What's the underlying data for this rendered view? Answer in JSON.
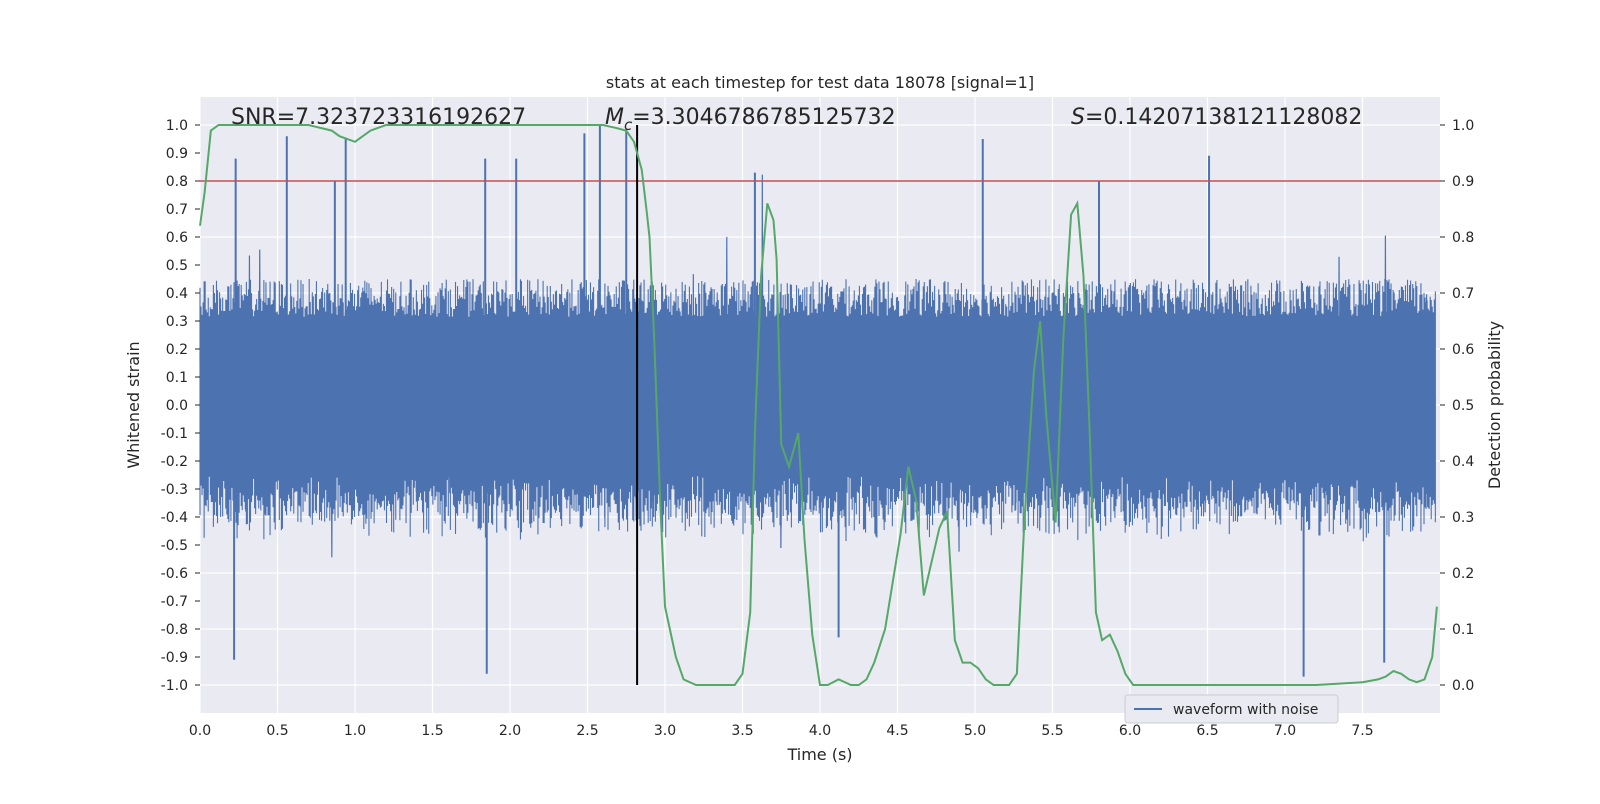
{
  "chart_data": {
    "type": "line",
    "title": "stats at each timestep for test data 18078 [signal=1]",
    "xlabel": "Time (s)",
    "ylabel_left": "Whitened strain",
    "ylabel_right": "Detection probability",
    "xlim": [
      0.0,
      8.0
    ],
    "ylim_left": [
      -1.1,
      1.1
    ],
    "ylim_right": [
      -0.05,
      1.05
    ],
    "x_ticks": [
      "0.0",
      "0.5",
      "1.0",
      "1.5",
      "2.0",
      "2.5",
      "3.0",
      "3.5",
      "4.0",
      "4.5",
      "5.0",
      "5.5",
      "6.0",
      "6.5",
      "7.0",
      "7.5"
    ],
    "y_left_ticks": [
      "-1.0",
      "-0.9",
      "-0.8",
      "-0.7",
      "-0.6",
      "-0.5",
      "-0.4",
      "-0.3",
      "-0.2",
      "-0.1",
      "0.0",
      "0.1",
      "0.2",
      "0.3",
      "0.4",
      "0.5",
      "0.6",
      "0.7",
      "0.8",
      "0.9",
      "1.0"
    ],
    "y_right_ticks": [
      "0.0",
      "0.1",
      "0.2",
      "0.3",
      "0.4",
      "0.5",
      "0.6",
      "0.7",
      "0.8",
      "0.9",
      "1.0"
    ],
    "grid": true,
    "annotations": {
      "snr_text": "SNR=7.323723316192627",
      "mc_symbol": "M",
      "mc_sub": "c",
      "mc_value": "=3.3046786785125732",
      "s_symbol": "S",
      "s_value": "=0.14207138121128082"
    },
    "threshold": {
      "value": 0.8,
      "color": "#c44e52"
    },
    "event_time": 2.82,
    "series": [
      {
        "name": "waveform with noise",
        "color": "#4c72b0",
        "axis": "left",
        "description": "whitened strain noise, approx. 8 s at high sample rate, envelope about ±0.45 with spikes up to ±1.0",
        "spike_values": [
          {
            "t": 0.23,
            "v": 0.88
          },
          {
            "t": 0.56,
            "v": 0.96
          },
          {
            "t": 0.87,
            "v": 0.8
          },
          {
            "t": 0.94,
            "v": 0.95
          },
          {
            "t": 1.84,
            "v": 0.88
          },
          {
            "t": 2.04,
            "v": 0.88
          },
          {
            "t": 2.48,
            "v": 0.97
          },
          {
            "t": 2.58,
            "v": 1.0
          },
          {
            "t": 2.75,
            "v": 0.98
          },
          {
            "t": 3.58,
            "v": 0.83
          },
          {
            "t": 5.05,
            "v": 0.95
          },
          {
            "t": 5.8,
            "v": 0.8
          },
          {
            "t": 6.51,
            "v": 0.89
          },
          {
            "t": 0.22,
            "v": -0.91
          },
          {
            "t": 1.85,
            "v": -0.96
          },
          {
            "t": 4.12,
            "v": -0.83
          },
          {
            "t": 7.12,
            "v": -0.97
          },
          {
            "t": 7.64,
            "v": -0.92
          }
        ]
      },
      {
        "name": "detection probability",
        "color": "#55a868",
        "axis": "right",
        "x": [
          0.0,
          0.03,
          0.07,
          0.12,
          0.2,
          0.3,
          0.5,
          0.7,
          0.85,
          0.9,
          1.0,
          1.05,
          1.1,
          1.2,
          1.5,
          2.0,
          2.4,
          2.6,
          2.68,
          2.75,
          2.8,
          2.85,
          2.88,
          2.9,
          2.93,
          2.97,
          3.0,
          3.07,
          3.12,
          3.2,
          3.3,
          3.4,
          3.45,
          3.5,
          3.55,
          3.58,
          3.62,
          3.66,
          3.7,
          3.72,
          3.75,
          3.8,
          3.86,
          3.9,
          3.95,
          4.0,
          4.05,
          4.12,
          4.2,
          4.25,
          4.3,
          4.35,
          4.42,
          4.52,
          4.57,
          4.62,
          4.67,
          4.72,
          4.77,
          4.82,
          4.87,
          4.92,
          4.97,
          5.02,
          5.07,
          5.12,
          5.17,
          5.22,
          5.27,
          5.32,
          5.38,
          5.42,
          5.46,
          5.52,
          5.57,
          5.62,
          5.66,
          5.7,
          5.74,
          5.78,
          5.82,
          5.87,
          5.92,
          5.97,
          6.02,
          6.07,
          6.12,
          6.5,
          7.0,
          7.2,
          7.5,
          7.6,
          7.65,
          7.7,
          7.75,
          7.8,
          7.85,
          7.9,
          7.95,
          7.98
        ],
        "values": [
          0.82,
          0.88,
          0.99,
          1.0,
          1.0,
          1.0,
          1.0,
          1.0,
          0.99,
          0.98,
          0.97,
          0.98,
          0.99,
          1.0,
          1.0,
          1.0,
          1.0,
          1.0,
          0.995,
          0.99,
          0.97,
          0.92,
          0.85,
          0.8,
          0.62,
          0.32,
          0.14,
          0.05,
          0.01,
          0.0,
          0.0,
          0.0,
          0.0,
          0.02,
          0.13,
          0.45,
          0.73,
          0.86,
          0.83,
          0.76,
          0.43,
          0.39,
          0.45,
          0.26,
          0.09,
          0.0,
          0.0,
          0.01,
          0.0,
          0.0,
          0.01,
          0.04,
          0.1,
          0.27,
          0.39,
          0.33,
          0.16,
          0.22,
          0.28,
          0.31,
          0.08,
          0.04,
          0.04,
          0.03,
          0.01,
          0.0,
          0.0,
          0.0,
          0.02,
          0.3,
          0.56,
          0.65,
          0.48,
          0.29,
          0.62,
          0.84,
          0.86,
          0.73,
          0.45,
          0.13,
          0.08,
          0.09,
          0.06,
          0.02,
          0.0,
          0.0,
          0.0,
          0.0,
          0.0,
          0.0,
          0.005,
          0.01,
          0.015,
          0.025,
          0.02,
          0.01,
          0.005,
          0.01,
          0.05,
          0.14
        ]
      }
    ],
    "legend": {
      "placement": "lower-center-right",
      "entries": [
        "waveform with noise"
      ]
    }
  },
  "colors": {
    "axes_bg": "#eaeaf2",
    "grid": "#ffffff",
    "waveform": "#4c72b0",
    "probability": "#55a868",
    "threshold": "#c44e52",
    "event_line": "#000000"
  }
}
